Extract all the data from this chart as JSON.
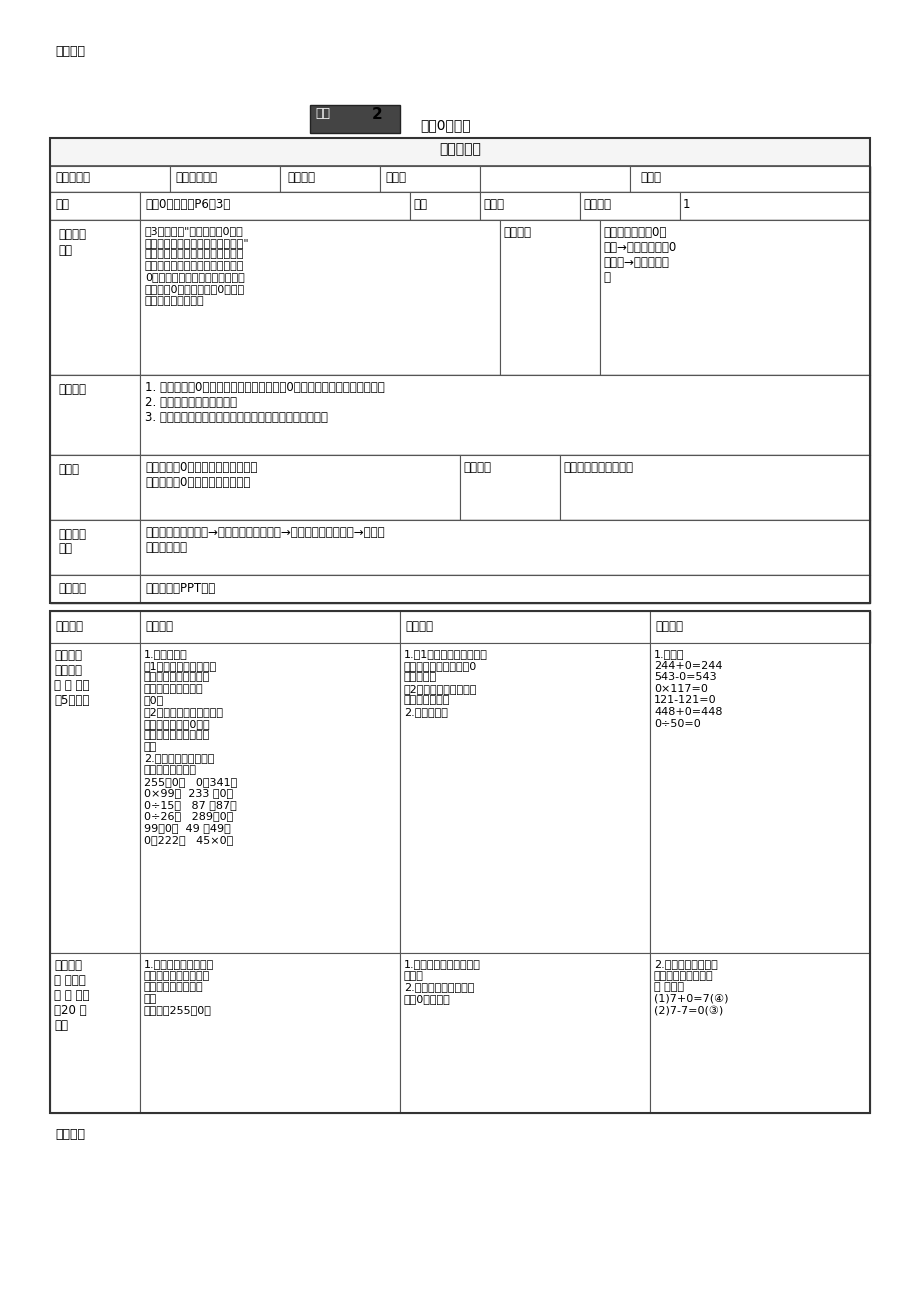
{
  "title_top": "教育资源",
  "title_main": "有关0的运算",
  "bg_color": "#ffffff",
  "table_border_color": "#333333",
  "header_row": "教学设计表",
  "row_header_bg": "#f0f0f0",
  "footer": "教育资源"
}
